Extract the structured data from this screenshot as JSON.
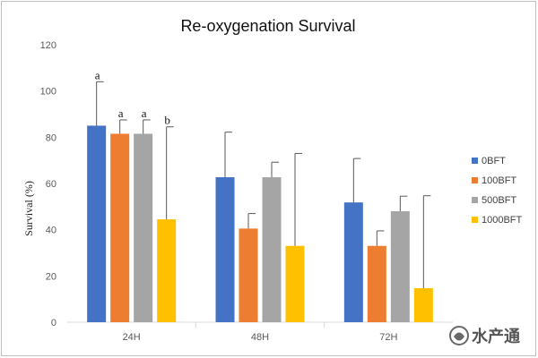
{
  "chart_data": {
    "type": "bar",
    "title": "Re-oxygenation Survival",
    "xlabel": "",
    "ylabel": "Survival (%)",
    "ylim": [
      0,
      120
    ],
    "yticks": [
      0,
      20,
      40,
      60,
      80,
      100,
      120
    ],
    "categories": [
      "24H",
      "48H",
      "72H"
    ],
    "grid": false,
    "legend_position": "right",
    "series": [
      {
        "name": "0BFT",
        "color": "#4472C4",
        "values": [
          85,
          62.7,
          51.8
        ],
        "error": [
          19,
          19.5,
          19
        ]
      },
      {
        "name": "100BFT",
        "color": "#ED7D31",
        "values": [
          81.5,
          40.5,
          33
        ],
        "error": [
          6,
          6.5,
          6.5
        ]
      },
      {
        "name": "500BFT",
        "color": "#A5A5A5",
        "values": [
          81.5,
          62.7,
          48
        ],
        "error": [
          6,
          6.5,
          6.5
        ]
      },
      {
        "name": "1000BFT",
        "color": "#FFC000",
        "values": [
          44.5,
          33,
          14.7
        ],
        "error": [
          40,
          40,
          40
        ]
      }
    ],
    "annotations": [
      {
        "category": "24H",
        "series": "0BFT",
        "text": "a"
      },
      {
        "category": "24H",
        "series": "100BFT",
        "text": "a"
      },
      {
        "category": "24H",
        "series": "500BFT",
        "text": "a"
      },
      {
        "category": "24H",
        "series": "1000BFT",
        "text": "b"
      }
    ]
  },
  "watermark": {
    "text": "水产通"
  }
}
